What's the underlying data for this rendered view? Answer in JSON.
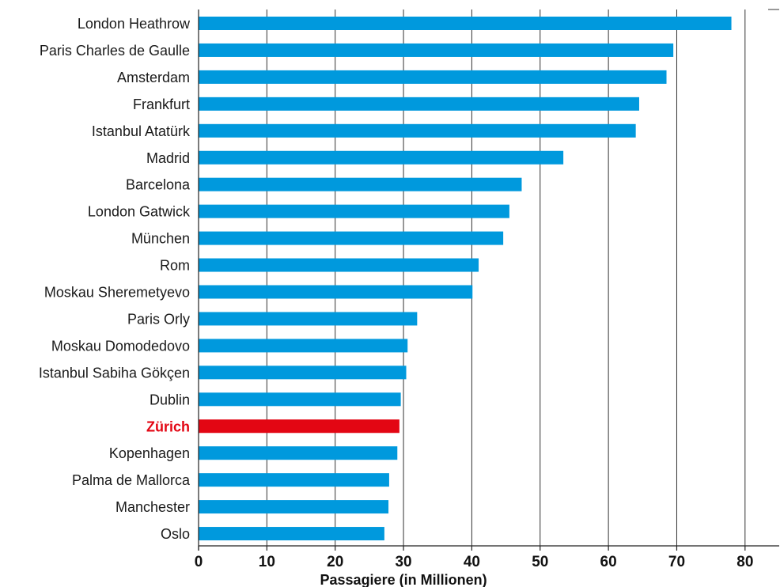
{
  "chart_data": {
    "type": "bar",
    "orientation": "horizontal",
    "title": "",
    "xlabel": "Passagiere (in Millionen)",
    "ylabel": "",
    "xlim": [
      0,
      85
    ],
    "xticks": [
      0,
      10,
      20,
      30,
      40,
      50,
      60,
      70,
      80
    ],
    "xtick_labels": [
      "0",
      "10",
      "20",
      "30",
      "40",
      "50",
      "60",
      "70",
      "80"
    ],
    "grid": "vertical",
    "bar_color": "#0099dd",
    "highlight_color": "#e30613",
    "highlight_category": "Zürich",
    "categories": [
      "London Heathrow",
      "Paris Charles de Gaulle",
      "Amsterdam",
      "Frankfurt",
      "Istanbul Atatürk",
      "Madrid",
      "Barcelona",
      "London Gatwick",
      "München",
      "Rom",
      "Moskau Sheremetyevo",
      "Paris Orly",
      "Moskau Domodedovo",
      "Istanbul Sabiha Gökçen",
      "Dublin",
      "Zürich",
      "Kopenhagen",
      "Palma de Mallorca",
      "Manchester",
      "Oslo"
    ],
    "values": [
      78.0,
      69.5,
      68.5,
      64.5,
      64.0,
      53.4,
      47.3,
      45.5,
      44.6,
      41.0,
      40.1,
      32.0,
      30.6,
      30.4,
      29.6,
      29.4,
      29.1,
      27.9,
      27.8,
      27.2
    ]
  }
}
